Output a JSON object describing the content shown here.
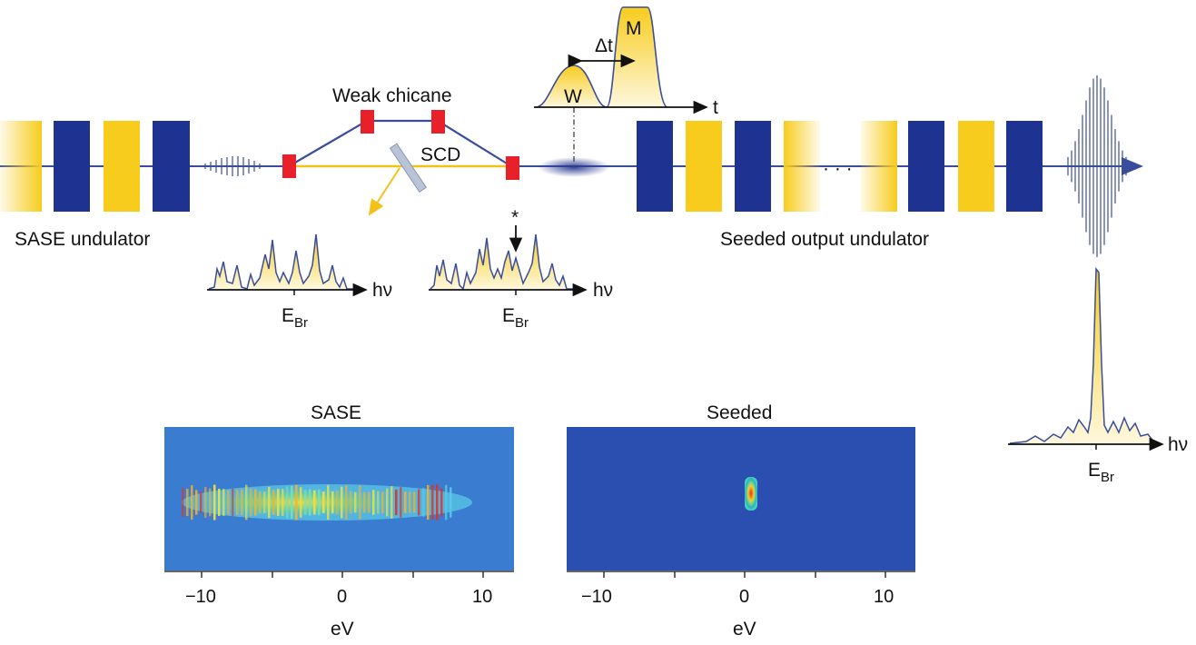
{
  "labels": {
    "weak_chicane": "Weak chicane",
    "scd": "SCD",
    "sase_undulator": "SASE undulator",
    "seeded_output_undulator": "Seeded output undulator",
    "ellipsis": "· · ·",
    "delta_t": "Δt",
    "w": "W",
    "m": "M",
    "t_axis": "t",
    "asterisk": "*",
    "hv": "hν",
    "e": "E",
    "e_sub": "Br"
  },
  "images": {
    "sase_title": "SASE",
    "seeded_title": "Seeded",
    "x_unit": "eV",
    "ticks": [
      "−10",
      "0",
      "10"
    ]
  },
  "colors": {
    "navy": "#1e3391",
    "yellow": "#f7cc1c",
    "magnet_red": "#e8202a",
    "seed_line": "#f2c21b",
    "beam_line": "#3a4c9c",
    "sase_bg": "#3a7ccf",
    "seeded_bg": "#2a4fb1"
  }
}
